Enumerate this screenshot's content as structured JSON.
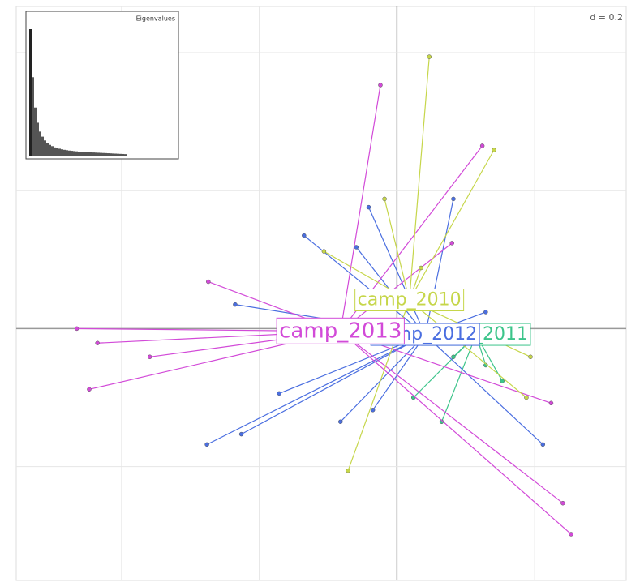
{
  "chart_data": {
    "type": "star",
    "d_label": "d = 0.2",
    "xlim": [
      -0.553,
      0.333
    ],
    "ylim": [
      -0.365,
      0.467
    ],
    "xticks": [
      -0.4,
      -0.2,
      0,
      0.2
    ],
    "yticks": [
      -0.2,
      0,
      0.2,
      0.4
    ],
    "grid": true,
    "series": [
      {
        "name": "camp_2011",
        "color": "#3cc48a",
        "center": [
          0.115,
          -0.009
        ],
        "x": [
          0.065,
          0.153,
          0.024,
          0.176,
          0.082,
          0.129
        ],
        "y": [
          -0.135,
          -0.076,
          -0.1,
          -0.018,
          -0.041,
          -0.053
        ]
      },
      {
        "name": "camp_2012",
        "color": "#4a6ee0",
        "center": [
          0.041,
          -0.009
        ],
        "x": [
          -0.276,
          -0.226,
          -0.171,
          -0.082,
          -0.035,
          0.212,
          0.082,
          -0.041,
          -0.135,
          -0.059,
          0.129,
          -0.235
        ],
        "y": [
          -0.168,
          -0.153,
          -0.094,
          -0.135,
          -0.118,
          -0.168,
          0.188,
          0.176,
          0.135,
          0.118,
          0.024,
          0.035
        ]
      },
      {
        "name": "camp_2013",
        "color": "#d24ad8",
        "center": [
          -0.082,
          -0.004
        ],
        "x": [
          -0.024,
          -0.274,
          -0.465,
          -0.435,
          -0.447,
          -0.359,
          0.253,
          0.241,
          0.224,
          0.124,
          0.08
        ],
        "y": [
          0.353,
          0.068,
          0.0,
          -0.021,
          -0.088,
          -0.041,
          -0.298,
          -0.253,
          -0.108,
          0.265,
          0.124
        ]
      },
      {
        "name": "camp_2010",
        "color": "#c6d64a",
        "center": [
          0.018,
          0.041
        ],
        "x": [
          0.047,
          0.141,
          -0.018,
          -0.071,
          0.188,
          -0.106,
          0.035,
          0.194
        ],
        "y": [
          0.394,
          0.259,
          0.188,
          -0.206,
          -0.1,
          0.112,
          0.088,
          -0.041
        ]
      }
    ],
    "eigen_title": "Eigenvalues",
    "eigenvalues": [
      100,
      62,
      38,
      26,
      19,
      15,
      12,
      10,
      8.5,
      7.5,
      6.5,
      6,
      5.5,
      5,
      4.6,
      4.3,
      4,
      3.8,
      3.6,
      3.4,
      3.2,
      3,
      2.9,
      2.8,
      2.7,
      2.6,
      2.5,
      2.4,
      2.3,
      2.2,
      2.1,
      2,
      1.9,
      1.8,
      1.7,
      1.6,
      1.5,
      1.4,
      1.3,
      1.2
    ]
  }
}
